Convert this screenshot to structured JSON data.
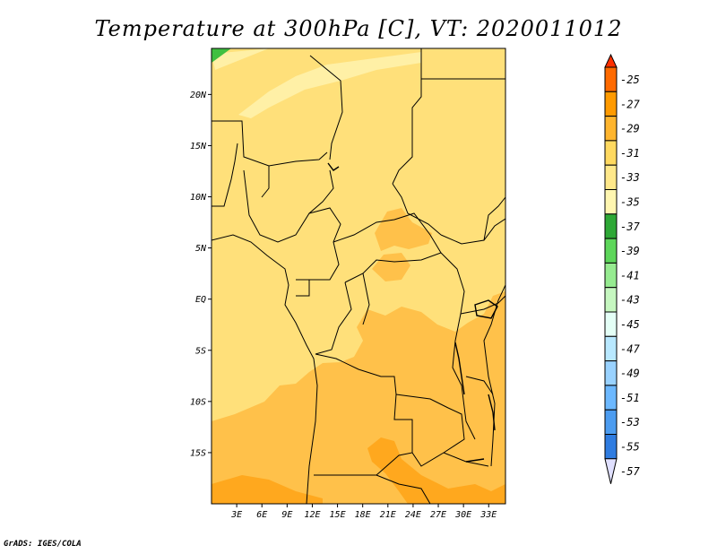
{
  "title": "Temperature at 300hPa [C], VT: 2020011012",
  "credit": "GrADS: IGES/COLA",
  "map": {
    "lat_ticks": [
      "20N",
      "15N",
      "10N",
      "5N",
      "EQ",
      "5S",
      "10S",
      "15S"
    ],
    "lon_ticks": [
      "3E",
      "6E",
      "9E",
      "12E",
      "15E",
      "18E",
      "21E",
      "24E",
      "27E",
      "30E",
      "33E"
    ],
    "lat_range": [
      -20,
      24.5
    ],
    "lon_range": [
      0,
      35
    ]
  },
  "colorbar": {
    "labels": [
      "-25",
      "-27",
      "-29",
      "-31",
      "-33",
      "-35",
      "-37",
      "-39",
      "-41",
      "-43",
      "-45",
      "-47",
      "-49",
      "-51",
      "-53",
      "-55",
      "-57"
    ],
    "colors": [
      "#ff3000",
      "#ff6a00",
      "#ff9a00",
      "#ffb52e",
      "#ffd960",
      "#ffe88a",
      "#fff6b0",
      "#2ea836",
      "#5dd65a",
      "#96eb90",
      "#c6f7c0",
      "#e4fff6",
      "#b8e8ff",
      "#99d2ff",
      "#6cb8ff",
      "#4c9cf0",
      "#2f7ce0",
      "#1a56c4",
      "#0c38a8",
      "#08206e",
      "#e0e0ff"
    ]
  },
  "legend_colors": {
    "t_27_29": "#ffa81e",
    "t_29_31": "#ffc14a",
    "t_31_33": "#ffe07a",
    "t_33_35": "#fff0a6",
    "t_35_37": "#40c040"
  }
}
